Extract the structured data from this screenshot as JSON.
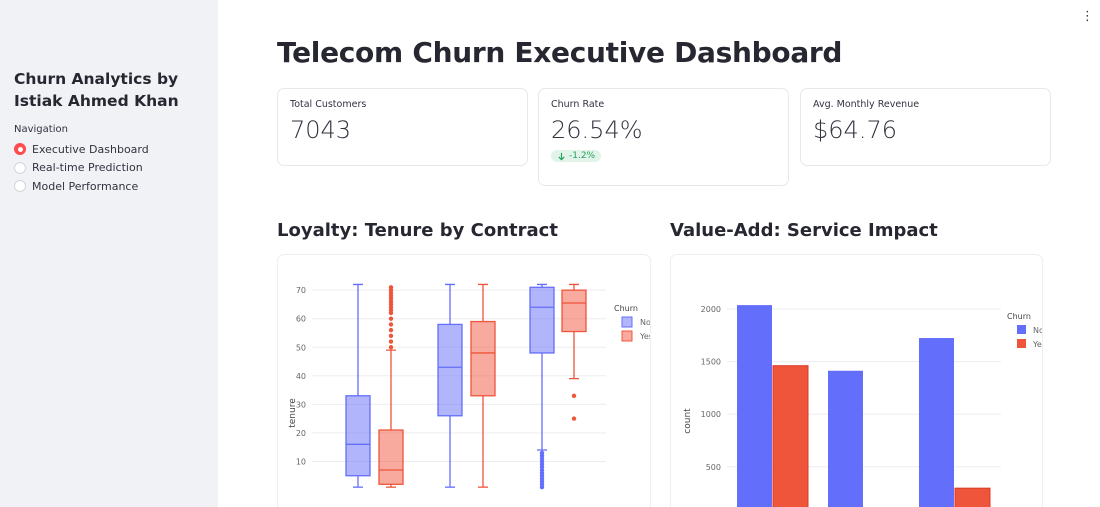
{
  "sidebar": {
    "title": "Churn Analytics by Istiak Ahmed Khan",
    "nav_label": "Navigation",
    "items": [
      {
        "label": "Executive Dashboard",
        "selected": true
      },
      {
        "label": "Real-time Prediction",
        "selected": false
      },
      {
        "label": "Model Performance",
        "selected": false
      }
    ]
  },
  "header": {
    "title": "Telecom Churn Executive Dashboard",
    "menu_icon": "kebab-icon"
  },
  "metrics": [
    {
      "label": "Total Customers",
      "value": "7043"
    },
    {
      "label": "Churn Rate",
      "value": "26.54%",
      "delta": "-1.2%",
      "delta_color": "#21a35a"
    },
    {
      "label": "Avg. Monthly Revenue",
      "value": "$64.76"
    }
  ],
  "sections": {
    "left_title": "Loyalty: Tenure by Contract",
    "right_title": "Value-Add: Service Impact"
  },
  "colors": {
    "no_churn": "#636efa",
    "churn": "#ef553b"
  },
  "chart_data": [
    {
      "type": "box",
      "title": "Loyalty: Tenure by Contract",
      "ylabel": "tenure",
      "ylim_visible": [
        0,
        76
      ],
      "yticks": [
        10,
        20,
        30,
        40,
        50,
        60,
        70
      ],
      "legend": {
        "title": "Churn",
        "entries": [
          "No",
          "Yes"
        ]
      },
      "series": [
        {
          "name": "No",
          "boxes": [
            {
              "min": 1,
              "q1": 5,
              "median": 16,
              "q3": 33,
              "max": 72,
              "outliers": []
            },
            {
              "min": 1,
              "q1": 26,
              "median": 43,
              "q3": 58,
              "max": 72,
              "outliers": []
            },
            {
              "min": 14,
              "q1": 48,
              "median": 64,
              "q3": 71,
              "max": 72,
              "outliers": [
                1,
                2,
                3,
                4,
                5,
                6,
                7,
                8,
                9,
                10,
                11,
                12,
                13
              ]
            }
          ]
        },
        {
          "name": "Yes",
          "boxes": [
            {
              "min": 1,
              "q1": 2,
              "median": 7,
              "q3": 21,
              "max": 49,
              "outliers": [
                50,
                52,
                54,
                56,
                58,
                60,
                62,
                63,
                64,
                65,
                66,
                67,
                68,
                69,
                70,
                71
              ]
            },
            {
              "min": 1,
              "q1": 33,
              "median": 48,
              "q3": 59,
              "max": 72,
              "outliers": []
            },
            {
              "min": 39,
              "q1": 55.5,
              "median": 65.5,
              "q3": 70,
              "max": 72,
              "outliers": [
                33,
                25
              ]
            }
          ]
        }
      ]
    },
    {
      "type": "bar",
      "title": "Value-Add: Service Impact",
      "ylabel": "count",
      "ylim_visible": [
        320,
        2170
      ],
      "yticks": [
        500,
        1000,
        1500,
        2000
      ],
      "legend": {
        "title": "Churn",
        "entries": [
          "No",
          "Yes"
        ]
      },
      "series": [
        {
          "name": "No",
          "values": [
            2037,
            1413,
            1724
          ]
        },
        {
          "name": "Yes",
          "values": [
            1461,
            0,
            297
          ]
        }
      ]
    }
  ]
}
